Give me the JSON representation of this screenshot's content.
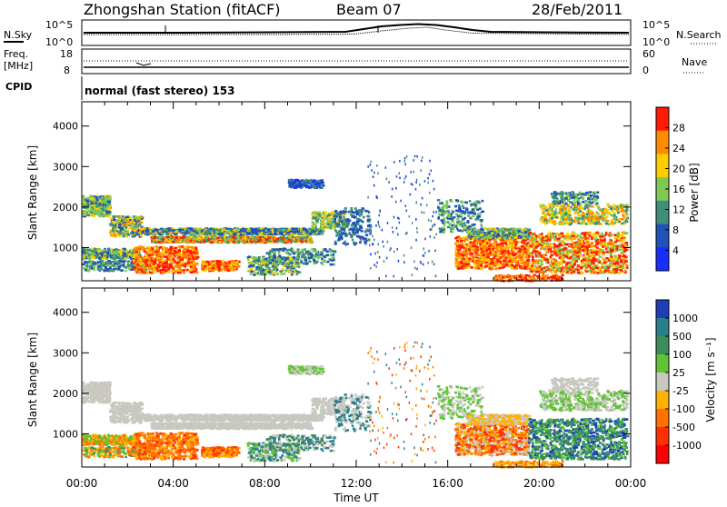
{
  "header": {
    "title": "Zhongshan Station (fitACF)",
    "beam": "Beam 07",
    "date": "28/Feb/2011"
  },
  "noise_panel": {
    "left_label": "N.Sky",
    "right_label": "N.Search",
    "left_ticks": [
      "10^5",
      "10^0"
    ],
    "right_ticks": [
      "10^5",
      "10^0"
    ]
  },
  "freq_panel": {
    "left_label_top": "Freq.",
    "left_label_bottom": "[MHz]",
    "right_label": "Nave",
    "left_ticks": [
      "18",
      "8"
    ],
    "right_ticks": [
      "60",
      "0"
    ]
  },
  "cpid": {
    "label": "CPID",
    "text": "normal (fast stereo) 153"
  },
  "chart_data": [
    {
      "type": "heatmap",
      "quantity": "power",
      "ylabel": "Slant Range [km]",
      "xlabel": "",
      "x_ticks": [
        "00:00",
        "04:00",
        "08:00",
        "12:00",
        "16:00",
        "20:00",
        "00:00"
      ],
      "y_ticks": [
        "1000",
        "2000",
        "3000",
        "4000"
      ],
      "xlim_hours": [
        0,
        24
      ],
      "ylim_km": [
        180,
        4600
      ],
      "colorbar_label": "Power [dB]",
      "colorbar_ticks": [
        "4",
        "8",
        "12",
        "16",
        "20",
        "24",
        "28"
      ],
      "colorbar_range": [
        0,
        32
      ],
      "colors": [
        "#1a2dff",
        "#2152b8",
        "#3f8e7a",
        "#7ec956",
        "#ffcc00",
        "#ff8c00",
        "#ff1a00"
      ]
    },
    {
      "type": "heatmap",
      "quantity": "velocity",
      "ylabel": "Slant Range [km]",
      "xlabel": "Time UT",
      "x_ticks": [
        "00:00",
        "04:00",
        "08:00",
        "12:00",
        "16:00",
        "20:00",
        "00:00"
      ],
      "y_ticks": [
        "1000",
        "2000",
        "3000",
        "4000"
      ],
      "xlim_hours": [
        0,
        24
      ],
      "ylim_km": [
        180,
        4600
      ],
      "colorbar_label": "Velocity [m s⁻¹]",
      "colorbar_ticks": [
        "1000",
        "500",
        "100",
        "25",
        "-25",
        "-100",
        "-500",
        "-1000"
      ],
      "colors": [
        "#1e3fb8",
        "#2a7f8a",
        "#3d8c5e",
        "#5ec433",
        "#c8c8c0",
        "#ffb000",
        "#ff7000",
        "#ff3000",
        "#ff0000"
      ],
      "ground_scatter_color": "#c8c8c0"
    }
  ]
}
